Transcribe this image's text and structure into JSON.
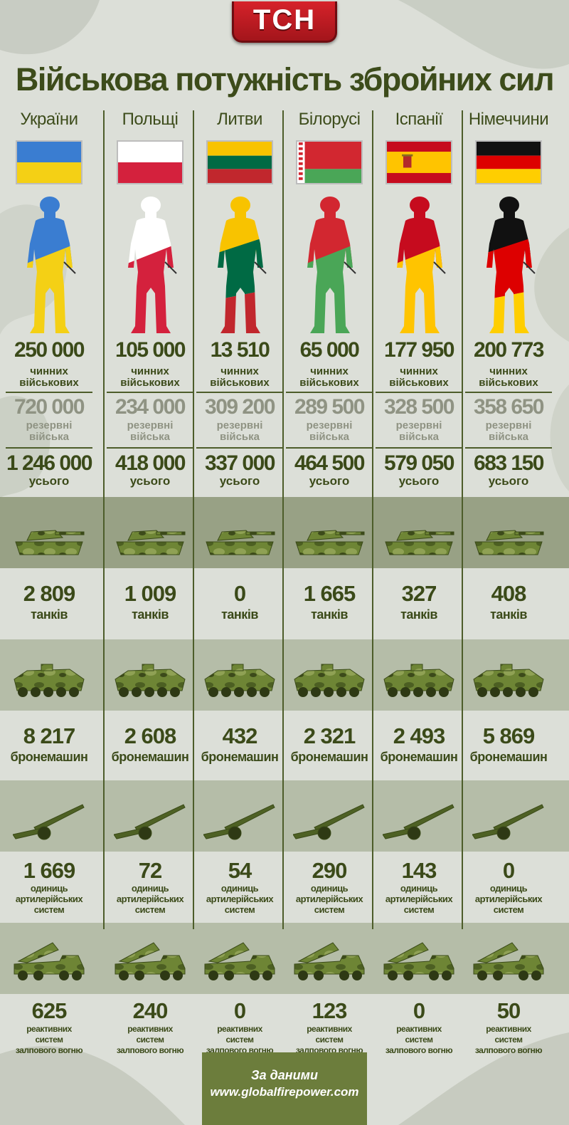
{
  "logo": "ТСН",
  "title": "Військова потужність збройних сил",
  "labels": {
    "active": [
      "чинних",
      "військових"
    ],
    "reserve": [
      "резервні",
      "війська"
    ],
    "total": "усього",
    "tanks": "танків",
    "armored": "бронемашин",
    "artillery": [
      "одиниць",
      "артилерійських",
      "систем"
    ],
    "mlrs": [
      "реактивних",
      "систем",
      "залпового вогню"
    ]
  },
  "icons": [
    "tank-icon",
    "armored-vehicle-icon",
    "artillery-icon",
    "rocket-launcher-icon",
    "soldier-icon"
  ],
  "countries": [
    {
      "name": "України",
      "flag": [
        "#3a7dd1",
        "#f4d015"
      ],
      "active": "250 000",
      "reserve": "720 000",
      "total": "1 246 000",
      "tanks": "2 809",
      "armored": "8 217",
      "artillery": "1 669",
      "mlrs": "625"
    },
    {
      "name": "Польщі",
      "flag": [
        "#ffffff",
        "#d4213d"
      ],
      "active": "105 000",
      "reserve": "234 000",
      "total": "418 000",
      "tanks": "1 009",
      "armored": "2 608",
      "artillery": "72",
      "mlrs": "240"
    },
    {
      "name": "Литви",
      "flag": [
        "#f8c300",
        "#006a44",
        "#c1272d"
      ],
      "active": "13 510",
      "reserve": "309 200",
      "total": "337 000",
      "tanks": "0",
      "armored": "432",
      "artillery": "54",
      "mlrs": "0"
    },
    {
      "name": "Білорусі",
      "flag": [
        "#d22730",
        "#4aa657"
      ],
      "active": "65 000",
      "reserve": "289 500",
      "total": "464 500",
      "tanks": "1 665",
      "armored": "2 321",
      "artillery": "290",
      "mlrs": "123"
    },
    {
      "name": "Іспанії",
      "flag": [
        "#c60b1e",
        "#ffc400"
      ],
      "active": "177 950",
      "reserve": "328 500",
      "total": "579 050",
      "tanks": "327",
      "armored": "2 493",
      "artillery": "143",
      "mlrs": "0"
    },
    {
      "name": "Німеччини",
      "flag": [
        "#111111",
        "#dd0000",
        "#ffce00"
      ],
      "active": "200 773",
      "reserve": "358 650",
      "total": "683 150",
      "tanks": "408",
      "armored": "5 869",
      "artillery": "0",
      "mlrs": "50"
    }
  ],
  "footer": {
    "line1": "За даними",
    "line2": "www.globalfirepower.com"
  }
}
